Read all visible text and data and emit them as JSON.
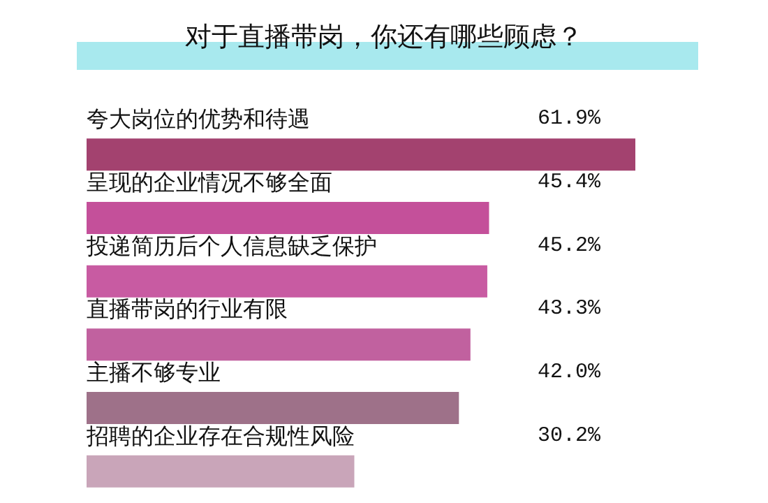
{
  "chart_data": {
    "type": "bar",
    "orientation": "horizontal",
    "title": "对于直播带岗，你还有哪些顾虑？",
    "categories": [
      "夸大岗位的优势和待遇",
      "呈现的企业情况不够全面",
      "投递简历后个人信息缺乏保护",
      "直播带岗的行业有限",
      "主播不够专业",
      "招聘的企业存在合规性风险"
    ],
    "values": [
      61.9,
      45.4,
      45.2,
      43.3,
      42.0,
      30.2
    ],
    "value_labels": [
      "61.9%",
      "45.4%",
      "45.2%",
      "43.3%",
      "42.0%",
      "30.2%"
    ],
    "colors": [
      "#a3426f",
      "#c4509a",
      "#c85ba2",
      "#c1619f",
      "#9e7189",
      "#c9a5b9"
    ]
  }
}
